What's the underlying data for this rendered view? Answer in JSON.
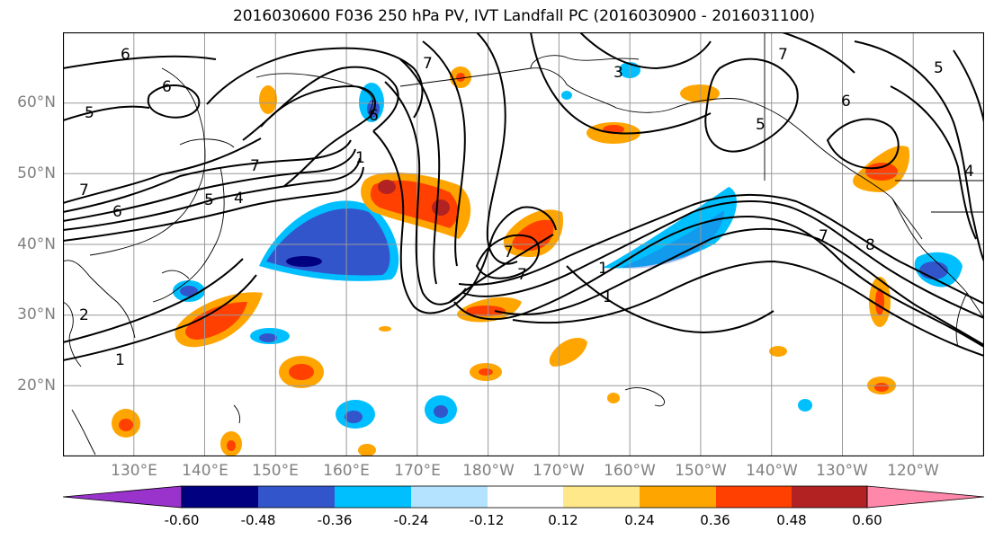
{
  "title": "2016030600 F036 250 hPa PV, IVT Landfall PC (2016030900 - 2016031100)",
  "map": {
    "lat_labels": [
      "60°N",
      "50°N",
      "40°N",
      "30°N",
      "20°N"
    ],
    "lon_labels": [
      "130°E",
      "140°E",
      "150°E",
      "160°E",
      "170°E",
      "180°W",
      "170°W",
      "160°W",
      "150°W",
      "140°W",
      "130°W",
      "120°W"
    ],
    "extent": {
      "lon_min": 120,
      "lon_max": 250,
      "lat_min": 10,
      "lat_max": 70
    },
    "contour_labels": [
      "6",
      "5",
      "6",
      "7",
      "6",
      "5",
      "4",
      "1",
      "2",
      "1",
      "7",
      "6",
      "7",
      "1",
      "7",
      "7",
      "6",
      "5",
      "7",
      "5",
      "7",
      "8",
      "4",
      "3",
      "1"
    ]
  },
  "colorbar": {
    "ticks": [
      "-0.60",
      "-0.48",
      "-0.36",
      "-0.24",
      "-0.12",
      "0.12",
      "0.24",
      "0.36",
      "0.48",
      "0.60"
    ],
    "colors": [
      "#9933cc",
      "#000080",
      "#3355cc",
      "#00bfff",
      "#b3e3ff",
      "#ffffff",
      "#ffe88a",
      "#ffa500",
      "#ff4000",
      "#b22222",
      "#ff88aa"
    ]
  }
}
